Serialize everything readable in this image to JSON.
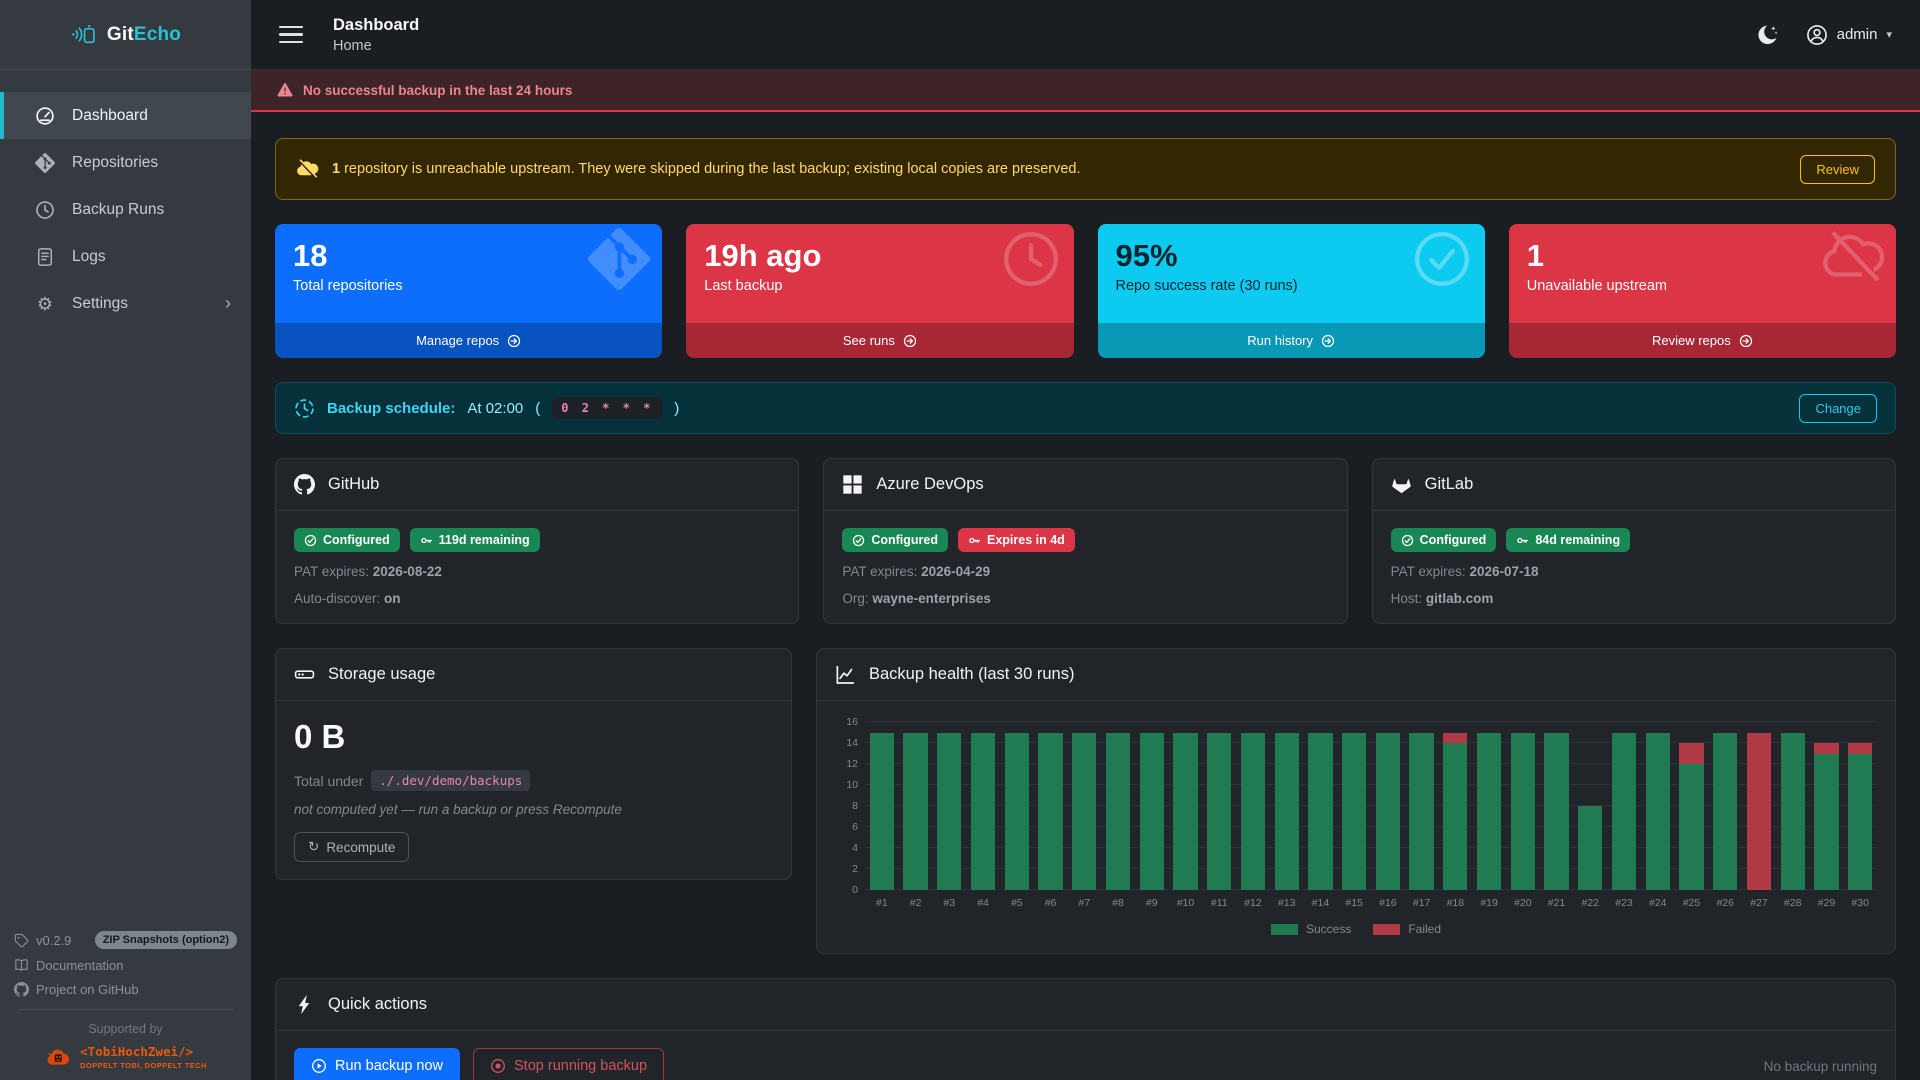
{
  "brand": {
    "name_primary": "Git",
    "name_secondary": "Echo",
    "icon": "gitecho-logo-icon"
  },
  "sidebar": {
    "items": [
      {
        "label": "Dashboard",
        "icon": "speedometer-icon",
        "active": true
      },
      {
        "label": "Repositories",
        "icon": "git-diamond-icon"
      },
      {
        "label": "Backup Runs",
        "icon": "clock-icon"
      },
      {
        "label": "Logs",
        "icon": "journal-icon"
      },
      {
        "label": "Settings",
        "icon": "gear-icon",
        "chevron": "›"
      }
    ],
    "footer": {
      "version": "v0.2.9",
      "version_badge": "ZIP Snapshots (option2)",
      "doc_link": "Documentation",
      "github_link": "Project on GitHub",
      "supported_by": "Supported by",
      "sponsor_name": "<TobiHochZwei/>",
      "sponsor_tagline": "DOPPELT TOBI, DOPPELT TECH"
    }
  },
  "header": {
    "title": "Dashboard",
    "breadcrumb": "Home",
    "user": "admin",
    "caret": "▾"
  },
  "alert_banner": {
    "text": "No successful backup in the last 24 hours"
  },
  "warning_banner": {
    "count": "1",
    "text": " repository is unreachable upstream. They were skipped during the last backup; existing local copies are preserved.",
    "action": "Review"
  },
  "stat_cards": [
    {
      "value": "18",
      "label": "Total repositories",
      "action": "Manage repos",
      "color": "#0d6efd",
      "watermark": "git-diamond-icon"
    },
    {
      "value": "19h ago",
      "label": "Last backup",
      "action": "See runs",
      "color": "#dc3545",
      "watermark": "clock-icon"
    },
    {
      "value": "95%",
      "label": "Repo success rate (30 runs)",
      "action": "Run history",
      "color": "#0dcaf0",
      "watermark": "check-circle-icon"
    },
    {
      "value": "1",
      "label": "Unavailable upstream",
      "action": "Review repos",
      "color": "#dc3545",
      "watermark": "cloud-slash-icon"
    }
  ],
  "schedule": {
    "label": "Backup schedule:",
    "time": "At 02:00",
    "paren_open": "(",
    "cron": "0 2 * * *",
    "paren_close": ")",
    "action": "Change"
  },
  "providers": [
    {
      "name": "GitHub",
      "icon": "github-icon",
      "badges": [
        {
          "text": "Configured",
          "icon": "check-circle-icon",
          "color": "green"
        },
        {
          "text": "119d remaining",
          "icon": "key-icon",
          "color": "green"
        }
      ],
      "fields": [
        {
          "label": "PAT expires: ",
          "value": "2026-08-22"
        },
        {
          "label": "Auto-discover: ",
          "value": "on"
        }
      ]
    },
    {
      "name": "Azure DevOps",
      "icon": "azure-grid-icon",
      "badges": [
        {
          "text": "Configured",
          "icon": "check-circle-icon",
          "color": "green"
        },
        {
          "text": "Expires in 4d",
          "icon": "key-icon",
          "color": "red"
        }
      ],
      "fields": [
        {
          "label": "PAT expires: ",
          "value": "2026-04-29"
        },
        {
          "label": "Org: ",
          "value": "wayne-enterprises"
        }
      ]
    },
    {
      "name": "GitLab",
      "icon": "gitlab-icon",
      "badges": [
        {
          "text": "Configured",
          "icon": "check-circle-icon",
          "color": "green"
        },
        {
          "text": "84d remaining",
          "icon": "key-icon",
          "color": "green"
        }
      ],
      "fields": [
        {
          "label": "PAT expires: ",
          "value": "2026-07-18"
        },
        {
          "label": "Host: ",
          "value": "gitlab.com"
        }
      ]
    }
  ],
  "storage": {
    "title": "Storage usage",
    "icon": "hdd-icon",
    "total": "0 B",
    "under_label": "Total under",
    "path": "./.dev/demo/backups",
    "note": "not computed yet — run a backup or press Recompute",
    "action": "Recompute",
    "action_icon": "arrow-clockwise-icon"
  },
  "chart_title": "Backup health (last 30 runs)",
  "chart_data": {
    "type": "bar",
    "stacked": true,
    "title": "Backup health (last 30 runs)",
    "categories": [
      "#1",
      "#2",
      "#3",
      "#4",
      "#5",
      "#6",
      "#7",
      "#8",
      "#9",
      "#10",
      "#11",
      "#12",
      "#13",
      "#14",
      "#15",
      "#16",
      "#17",
      "#18",
      "#19",
      "#20",
      "#21",
      "#22",
      "#23",
      "#24",
      "#25",
      "#26",
      "#27",
      "#28",
      "#29",
      "#30"
    ],
    "series": [
      {
        "name": "Success",
        "color": "#207a52",
        "values": [
          15,
          15,
          15,
          15,
          15,
          15,
          15,
          15,
          15,
          15,
          15,
          15,
          15,
          15,
          15,
          15,
          15,
          14,
          15,
          15,
          15,
          8,
          15,
          15,
          12,
          15,
          0,
          15,
          13,
          13
        ]
      },
      {
        "name": "Failed",
        "color": "#b03a46",
        "values": [
          0,
          0,
          0,
          0,
          0,
          0,
          0,
          0,
          0,
          0,
          0,
          0,
          0,
          0,
          0,
          0,
          0,
          1,
          0,
          0,
          0,
          0,
          0,
          0,
          2,
          0,
          15,
          0,
          1,
          1
        ]
      }
    ],
    "xlabel": "",
    "ylabel": "",
    "ylim": [
      0,
      16
    ],
    "yticks": [
      0,
      2,
      4,
      6,
      8,
      10,
      12,
      14,
      16
    ],
    "grid": true,
    "legend_position": "bottom"
  },
  "quick_actions": {
    "title": "Quick actions",
    "icon": "lightning-icon",
    "run_label": "Run backup now",
    "stop_label": "Stop running backup",
    "status": "No backup running"
  },
  "colors": {
    "accent_cyan": "#22b8ce",
    "primary_blue": "#0d6efd",
    "danger_red": "#dc3545",
    "info_cyan": "#0dcaf0",
    "success_green": "#198754",
    "warning_yellow": "#ffc107",
    "chart_success": "#207a52",
    "chart_failed": "#b03a46",
    "sponsor_orange": "#e8590c"
  }
}
